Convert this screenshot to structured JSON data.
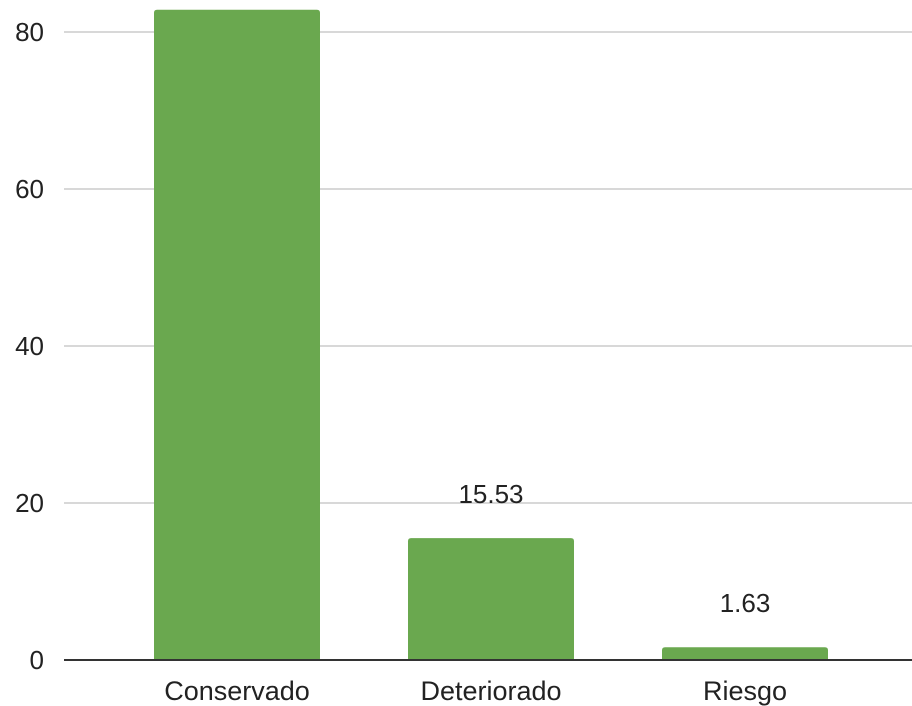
{
  "chart_data": {
    "type": "bar",
    "title": "",
    "xlabel": "",
    "ylabel": "",
    "categories": [
      "Conservado",
      "Deteriorado",
      "Riesgo"
    ],
    "values": [
      82.84,
      15.53,
      1.63
    ],
    "data_labels": [
      "",
      "15.53",
      "1.63"
    ],
    "ylim": [
      0,
      85
    ],
    "yticks": [
      0,
      20,
      40,
      60,
      80
    ],
    "grid": true,
    "legend": "none",
    "bar_color": "#6aa84f"
  }
}
